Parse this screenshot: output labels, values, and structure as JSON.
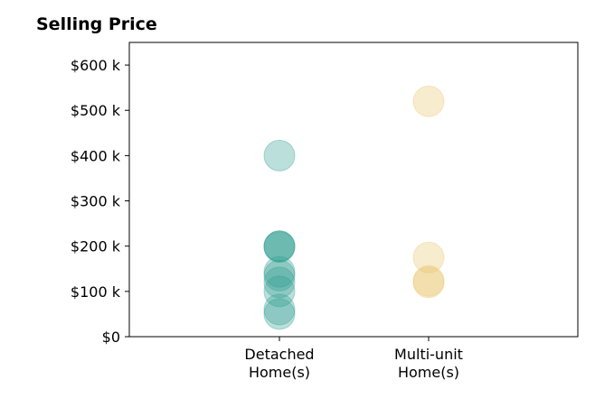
{
  "chart_data": {
    "type": "scatter",
    "title": "Selling Price",
    "xlabel": "",
    "ylabel": "",
    "categories": [
      "Detached\nHome(s)",
      "Multi-unit\nHome(s)"
    ],
    "y_ticks": [
      "$0",
      "$100 k",
      "$200 k",
      "$300 k",
      "$400 k",
      "$500 k",
      "$600 k"
    ],
    "ylim": [
      0,
      650000
    ],
    "grid": false,
    "series": [
      {
        "category_index": 0,
        "color": "#2a9d8f",
        "values": [
          400000,
          200000,
          200000,
          198000,
          143000,
          135000,
          120000,
          100000,
          60000,
          50000
        ]
      },
      {
        "category_index": 1,
        "color": "#e9c46a",
        "values": [
          520000,
          175000,
          123000,
          120000
        ]
      }
    ]
  }
}
